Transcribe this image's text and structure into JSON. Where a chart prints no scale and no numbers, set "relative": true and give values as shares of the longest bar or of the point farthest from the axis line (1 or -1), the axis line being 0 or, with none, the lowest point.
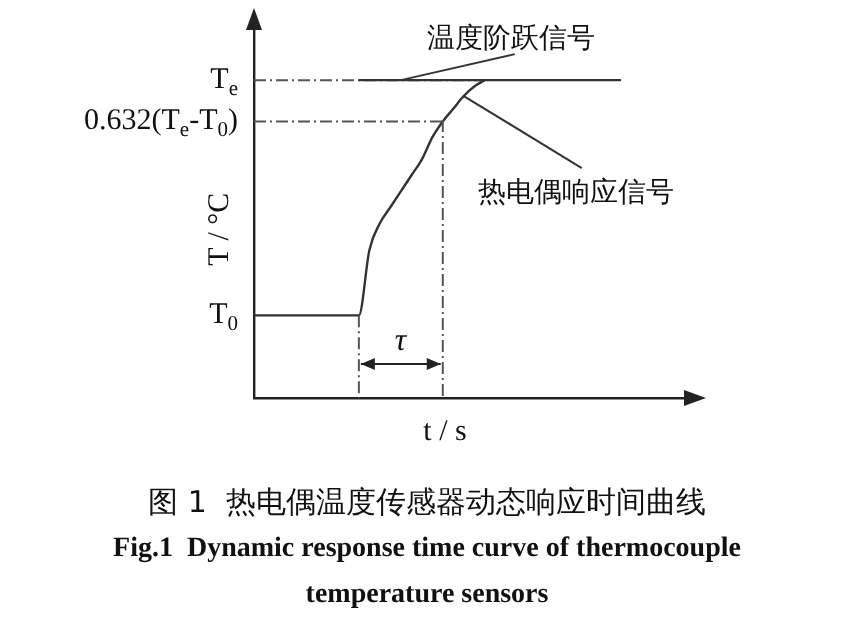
{
  "chart_data": {
    "type": "line",
    "title": "图 1  热电偶温度传感器动态响应时间曲线",
    "subtitle": "Fig.1  Dynamic response time curve of thermocouple temperature sensors",
    "xlabel": "t / s",
    "ylabel": "T / °C",
    "relative": true,
    "marker": "none",
    "grid": false,
    "legend": false,
    "categories": [
      null,
      null,
      null,
      null,
      null,
      null,
      null,
      null,
      null,
      null,
      null,
      null,
      null,
      null,
      null,
      null,
      null,
      null,
      null,
      null,
      null,
      null,
      null,
      null,
      null,
      null,
      null,
      null,
      null,
      null,
      null,
      null,
      null,
      null,
      null,
      null,
      null,
      null,
      null,
      null,
      null,
      null
    ],
    "series": [
      {
        "name": "温度阶跃信号",
        "color": "#333333",
        "values": [
          null,
          null,
          null,
          null,
          null,
          null,
          null,
          null,
          null,
          null,
          1,
          1,
          1,
          1,
          1,
          1,
          1,
          1,
          1,
          1,
          1,
          1,
          1,
          1,
          1,
          1,
          1,
          1,
          1,
          1,
          1,
          1,
          1,
          1,
          1,
          1,
          null,
          null,
          null,
          null,
          null,
          null
        ]
      },
      {
        "name": "热电偶响应信号",
        "color": "#333333",
        "values": [
          0.26,
          0.26,
          0.26,
          0.26,
          0.26,
          0.26,
          0.26,
          0.26,
          0.26,
          0.26,
          0.26,
          0.465,
          0.55,
          0.6,
          0.65,
          0.7,
          0.75,
          0.82,
          0.87,
          0.91,
          0.95,
          0.98,
          1,
          null,
          null,
          null,
          null,
          null,
          null,
          null,
          null,
          null,
          null,
          null,
          null,
          null,
          null,
          null,
          null,
          null,
          null,
          null
        ]
      }
    ],
    "ref_lines": [
      {
        "axis": "y",
        "value": 1,
        "label": "T$_{e}$",
        "color": "#555555",
        "line_style": "dashed"
      },
      {
        "axis": "y",
        "value": 0.87,
        "label": "0.632(T$_{e}$-T$_{0}$)",
        "color": "#555555",
        "line_style": "dashed"
      }
    ],
    "annotations": [
      "T$_{0}$",
      "τ"
    ]
  }
}
